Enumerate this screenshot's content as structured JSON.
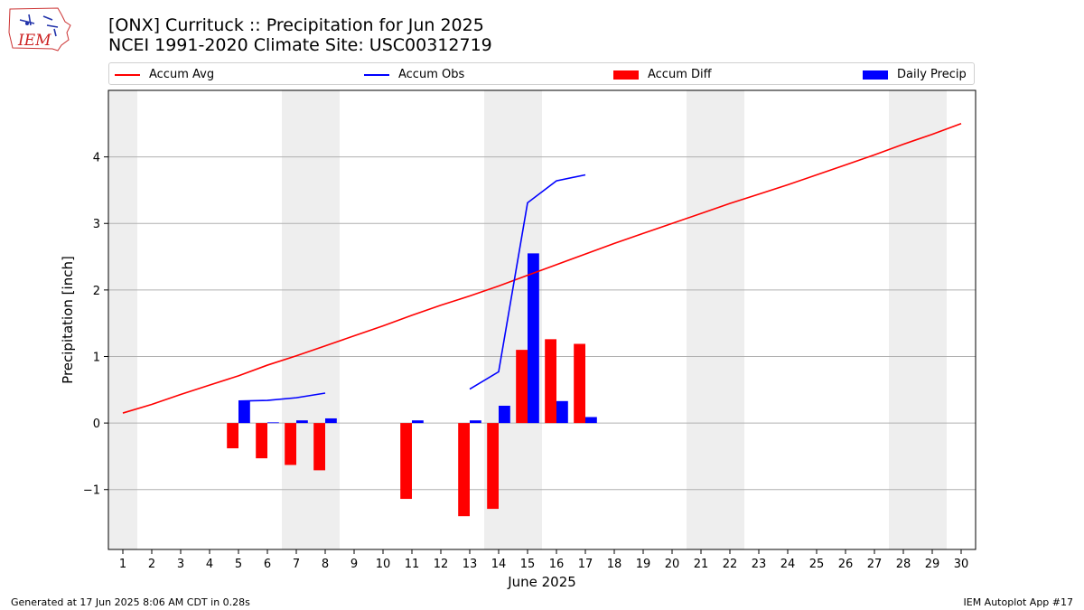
{
  "header": {
    "title_line1": "[ONX] Currituck :: Precipitation for Jun 2025",
    "title_line2": "NCEI 1991-2020 Climate Site: USC00312719",
    "logo_text": "IEM"
  },
  "footer": {
    "generated": "Generated at 17 Jun 2025 8:06 AM CDT in 0.28s",
    "app": "IEM Autoplot App #17"
  },
  "colors": {
    "avg": "#ff0000",
    "obs": "#0000ff",
    "diff": "#ff0000",
    "daily": "#0000ff",
    "weekend_shade": "#eeeeee",
    "grid": "#b0b0b0"
  },
  "chart_data": {
    "type": "bar",
    "xlabel": "June 2025",
    "ylabel": "Precipitation [inch]",
    "x": [
      1,
      2,
      3,
      4,
      5,
      6,
      7,
      8,
      9,
      10,
      11,
      12,
      13,
      14,
      15,
      16,
      17,
      18,
      19,
      20,
      21,
      22,
      23,
      24,
      25,
      26,
      27,
      28,
      29,
      30
    ],
    "xlim": [
      0.5,
      30.5
    ],
    "ylim": [
      -1.9,
      5.0
    ],
    "yticks": [
      -1,
      0,
      1,
      2,
      3,
      4
    ],
    "ytick_labels": [
      "−1",
      "0",
      "1",
      "2",
      "3",
      "4"
    ],
    "grid": "horizontal",
    "legend": "top",
    "shaded_days": [
      [
        0.5,
        1.5
      ],
      [
        6.5,
        8.5
      ],
      [
        13.5,
        15.5
      ],
      [
        20.5,
        22.5
      ],
      [
        27.5,
        29.5
      ]
    ],
    "series": [
      {
        "name": "Accum Avg",
        "kind": "line",
        "x": [
          1,
          2,
          3,
          4,
          5,
          6,
          7,
          8,
          9,
          10,
          11,
          12,
          13,
          14,
          15,
          16,
          17,
          18,
          19,
          20,
          21,
          22,
          23,
          24,
          25,
          26,
          27,
          28,
          29,
          30
        ],
        "values": [
          0.15,
          0.28,
          0.43,
          0.57,
          0.71,
          0.87,
          1.01,
          1.16,
          1.31,
          1.46,
          1.62,
          1.77,
          1.91,
          2.06,
          2.22,
          2.38,
          2.54,
          2.7,
          2.85,
          3.0,
          3.15,
          3.3,
          3.44,
          3.58,
          3.73,
          3.88,
          4.03,
          4.19,
          4.34,
          4.5
        ]
      },
      {
        "name": "Accum Obs",
        "kind": "line",
        "segments": [
          {
            "x": [
              5,
              6,
              7,
              8
            ],
            "values": [
              0.33,
              0.34,
              0.38,
              0.45
            ]
          },
          {
            "x": [
              13,
              14,
              15,
              16,
              17
            ],
            "values": [
              0.51,
              0.77,
              3.31,
              3.64,
              3.73
            ]
          }
        ]
      },
      {
        "name": "Accum Diff",
        "kind": "bar",
        "x": [
          5,
          6,
          7,
          8,
          11,
          13,
          14,
          15,
          16,
          17
        ],
        "values": [
          -0.38,
          -0.53,
          -0.63,
          -0.71,
          -1.14,
          -1.4,
          -1.29,
          1.1,
          1.26,
          1.19
        ]
      },
      {
        "name": "Daily Precip",
        "kind": "bar",
        "x": [
          5,
          6,
          7,
          8,
          11,
          13,
          14,
          15,
          16,
          17
        ],
        "values": [
          0.33,
          0.01,
          0.04,
          0.07,
          0.04,
          0.04,
          0.26,
          2.55,
          0.33,
          0.09
        ]
      }
    ]
  }
}
